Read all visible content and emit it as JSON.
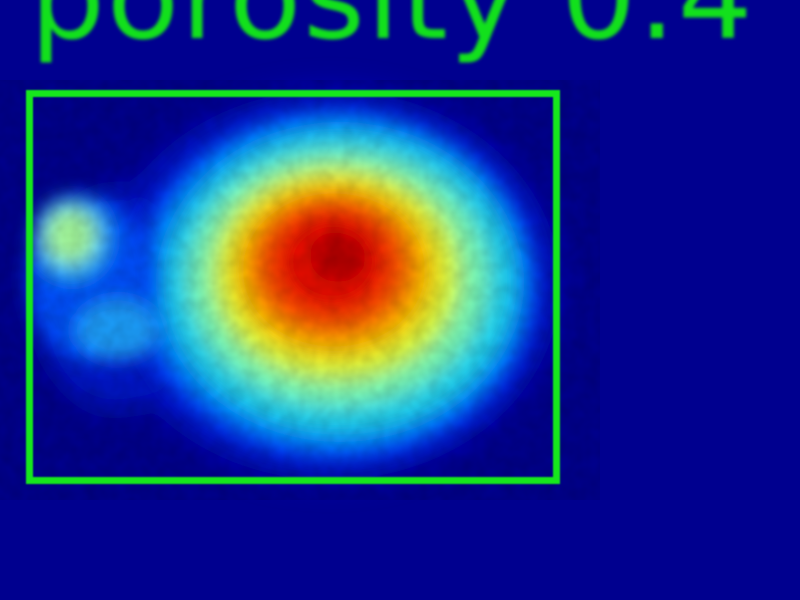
{
  "caption": "porosity  0.4",
  "detection_box": {
    "border_color": "#16e81c"
  },
  "colors": {
    "background": "#00008f",
    "caption_text": "#12e01c",
    "colormap": "jet"
  }
}
